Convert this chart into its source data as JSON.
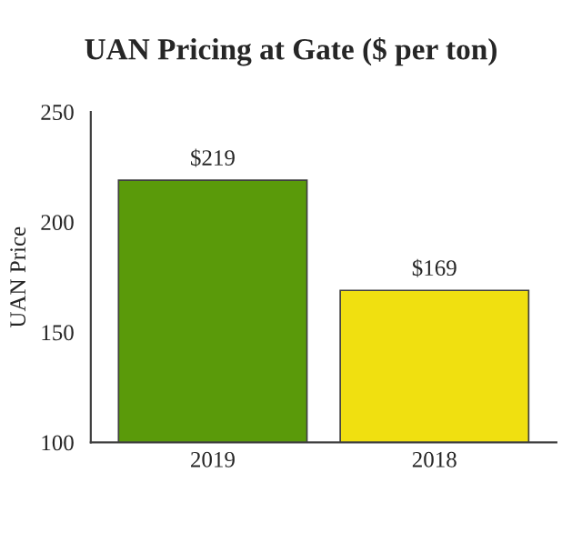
{
  "chart_data": {
    "type": "bar",
    "title": "UAN Pricing at Gate ($ per ton)",
    "ylabel": "UAN Price",
    "categories": [
      "2019",
      "2018"
    ],
    "values": [
      219,
      169
    ],
    "colors": [
      "#5a9a0a",
      "#f0e010"
    ],
    "value_labels": [
      "$219",
      "$169"
    ],
    "ylim": [
      100,
      250
    ],
    "yticks": [
      100,
      150,
      200,
      250
    ],
    "grid": false,
    "legend": false
  }
}
